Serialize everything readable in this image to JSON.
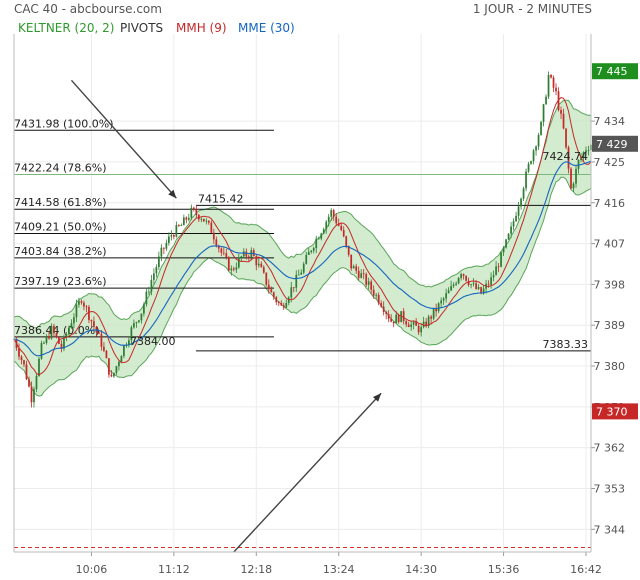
{
  "header": {
    "title": "CAC 40 - abcbourse.com",
    "period": "1 JOUR - 2 MINUTES"
  },
  "legend": [
    {
      "label": "KELTNER (20, 2)",
      "color": "#2e9a2e"
    },
    {
      "label": "PIVOTS",
      "color": "#333333"
    },
    {
      "label": "MMH (9)",
      "color": "#c62828"
    },
    {
      "label": "MME (30)",
      "color": "#1565c0"
    }
  ],
  "colors": {
    "up": "#2e7d32",
    "down": "#c62828",
    "keltner_fill": "#c8e6c2",
    "keltner_line": "#5aa55a",
    "mmh": "#c62828",
    "mme": "#1565c0",
    "tag_green": "#1e8e1e",
    "tag_grey": "#555555",
    "tag_red": "#c62828",
    "pivot_red": "#d32f2f"
  },
  "chart_data": {
    "type": "candlestick",
    "xlabel": "",
    "ylabel": "",
    "ylim": [
      7339,
      7451
    ],
    "y_ticks": [
      7344,
      7353,
      7362,
      7371,
      7380,
      7389,
      7398,
      7407,
      7416,
      7425,
      7434
    ],
    "x_ticks": [
      "10:06",
      "11:12",
      "12:18",
      "13:24",
      "14:30",
      "15:36",
      "16:42"
    ],
    "x_range": [
      "09:04",
      "16:46"
    ],
    "series": [
      {
        "name": "KELTNER (20, 2)"
      },
      {
        "name": "MMH (9)"
      },
      {
        "name": "MME (30)"
      }
    ],
    "close_path": [
      [
        "09:04",
        7386
      ],
      [
        "09:12",
        7380
      ],
      [
        "09:18",
        7373
      ],
      [
        "09:26",
        7384
      ],
      [
        "09:34",
        7388
      ],
      [
        "09:42",
        7384
      ],
      [
        "09:50",
        7390
      ],
      [
        "09:58",
        7395
      ],
      [
        "10:06",
        7390
      ],
      [
        "10:14",
        7385
      ],
      [
        "10:22",
        7377
      ],
      [
        "10:30",
        7383
      ],
      [
        "10:38",
        7388
      ],
      [
        "10:46",
        7392
      ],
      [
        "10:54",
        7399
      ],
      [
        "11:02",
        7405
      ],
      [
        "11:10",
        7409
      ],
      [
        "11:18",
        7411
      ],
      [
        "11:26",
        7414
      ],
      [
        "11:34",
        7413
      ],
      [
        "11:42",
        7410
      ],
      [
        "11:50",
        7405
      ],
      [
        "11:58",
        7401
      ],
      [
        "12:06",
        7404
      ],
      [
        "12:14",
        7405
      ],
      [
        "12:22",
        7401
      ],
      [
        "12:30",
        7396
      ],
      [
        "12:38",
        7393
      ],
      [
        "12:46",
        7397
      ],
      [
        "12:54",
        7401
      ],
      [
        "13:02",
        7406
      ],
      [
        "13:10",
        7410
      ],
      [
        "13:18",
        7414
      ],
      [
        "13:26",
        7410
      ],
      [
        "13:34",
        7402
      ],
      [
        "13:42",
        7400
      ],
      [
        "13:50",
        7397
      ],
      [
        "13:58",
        7394
      ],
      [
        "14:06",
        7390
      ],
      [
        "14:14",
        7391
      ],
      [
        "14:22",
        7389
      ],
      [
        "14:30",
        7388
      ],
      [
        "14:38",
        7391
      ],
      [
        "14:46",
        7394
      ],
      [
        "14:54",
        7397
      ],
      [
        "15:02",
        7401
      ],
      [
        "15:10",
        7398
      ],
      [
        "15:18",
        7396
      ],
      [
        "15:26",
        7399
      ],
      [
        "15:34",
        7404
      ],
      [
        "15:42",
        7410
      ],
      [
        "15:50",
        7418
      ],
      [
        "15:58",
        7426
      ],
      [
        "16:06",
        7433
      ],
      [
        "16:12",
        7444
      ],
      [
        "16:18",
        7440
      ],
      [
        "16:24",
        7432
      ],
      [
        "16:30",
        7419
      ],
      [
        "16:36",
        7425
      ],
      [
        "16:42",
        7428
      ],
      [
        "16:46",
        7429
      ]
    ],
    "pivots": [
      {
        "label": "7431.98  (100.0%)",
        "value": 7431.98
      },
      {
        "label": "7422.24  (78.6%)",
        "value": 7422.24
      },
      {
        "label": "7414.58  (61.8%)",
        "value": 7414.58
      },
      {
        "label": "7409.21  (50.0%)",
        "value": 7409.21
      },
      {
        "label": "7403.84  (38.2%)",
        "value": 7403.84
      },
      {
        "label": "7397.19  (23.6%)",
        "value": 7397.19
      },
      {
        "label": "7386.44  (0.0%)",
        "value": 7386.44
      }
    ],
    "annotations": [
      {
        "label": "7415.42",
        "value": 7415.42,
        "time": "11:36"
      },
      {
        "label": "7384.00",
        "value": 7384.0,
        "time": "10:46"
      },
      {
        "label": "7383.33",
        "value": 7383.33,
        "time": "16:46"
      },
      {
        "label": "7424.74",
        "value": 7424.74,
        "time": "16:32"
      }
    ],
    "level_lines": [
      7415.42,
      7383.33
    ],
    "red_dashed_level": 7340,
    "price_tags": [
      {
        "label": "7 445",
        "value": 7445,
        "color": "green"
      },
      {
        "label": "7 429",
        "value": 7429,
        "color": "grey"
      },
      {
        "label": "7 370",
        "value": 7370,
        "color": "red"
      }
    ],
    "arrows": [
      {
        "from": [
          "09:50",
          7443
        ],
        "to": [
          "11:14",
          7417
        ]
      },
      {
        "from": [
          "12:00",
          7339
        ],
        "to": [
          "13:58",
          7374
        ]
      }
    ],
    "grid": true
  }
}
